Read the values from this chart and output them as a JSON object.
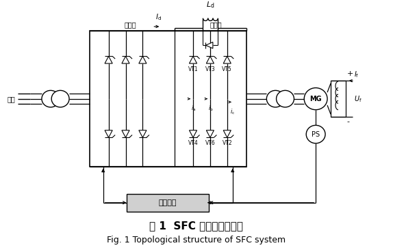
{
  "title_cn": "图 1  SFC 系统拓扑结构图",
  "title_en": "Fig. 1 Topological structure of SFC system",
  "bg_color": "#ffffff",
  "figsize": [
    5.74,
    3.69
  ],
  "dpi": 100,
  "label_wangqiao": "网桥侧",
  "label_jiqiao": "机桥侧",
  "label_dianwang": "电网",
  "label_ctrl": "控制系统"
}
